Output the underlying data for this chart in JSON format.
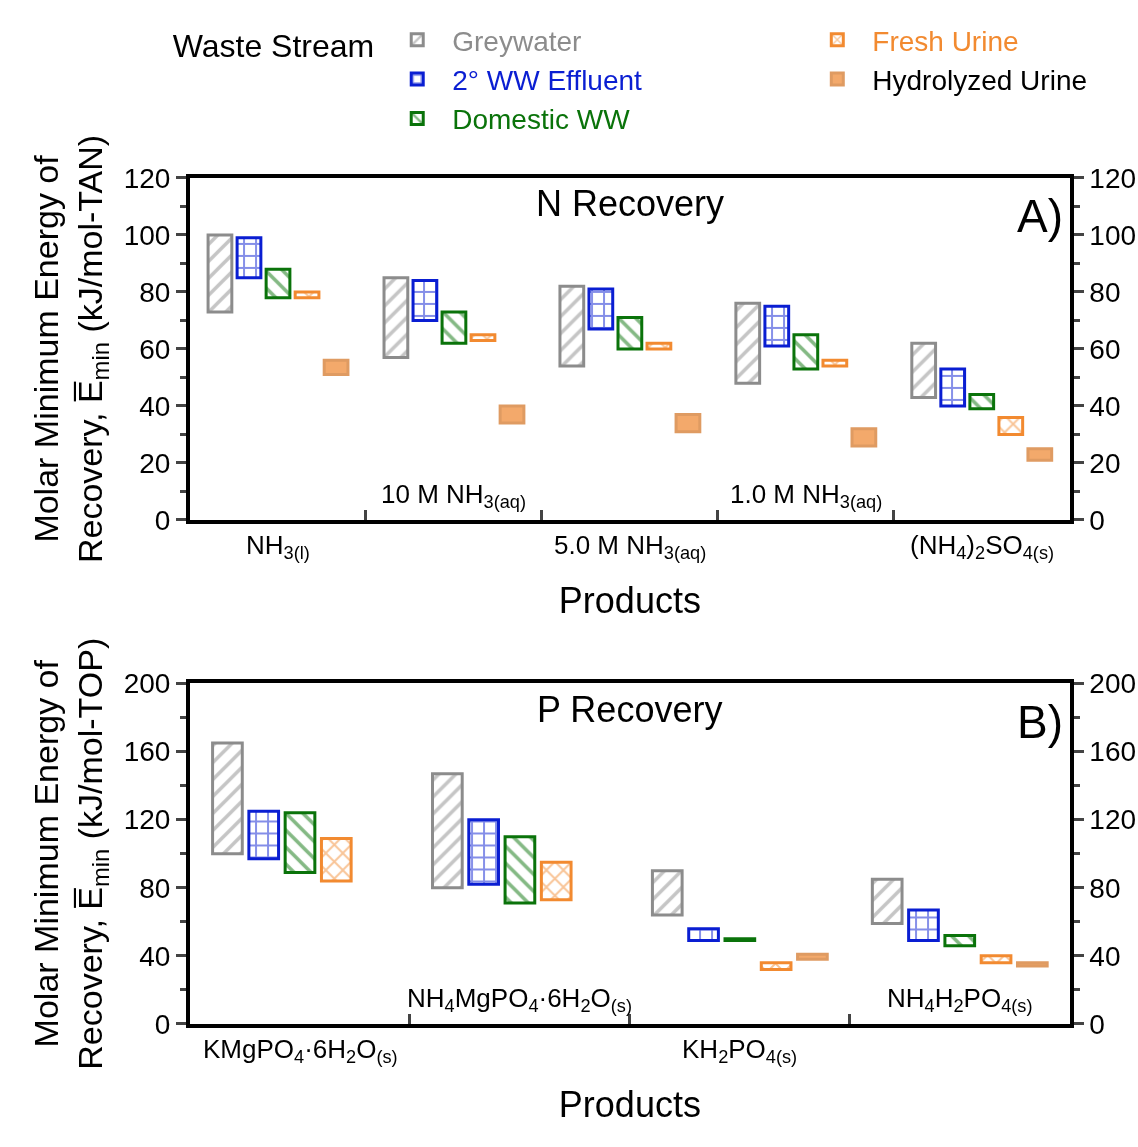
{
  "chart_data": [
    {
      "type": "bar",
      "title": "N Recovery",
      "xlabel": "Products",
      "ylabel": "Molar Minimum Energy of\nRecovery, E̅$_{min}$ (kJ/mol-TAN)",
      "legend_title": "Waste Stream",
      "legend": "top",
      "categories": [
        "NH$_{3(l)}$",
        "10 M NH$_{3(aq)}$",
        "5.0 M NH$_{3(aq)}$",
        "1.0 M NH$_{3(aq)}$",
        "(NH$_{4}$)$_{2}$SO$_{4(s)}$"
      ],
      "series": [
        {
          "name": "Greywater",
          "color": "#8c8c8c",
          "base": [
            73,
            57,
            54,
            48,
            43
          ],
          "values": [
            27,
            28,
            28,
            28,
            19
          ]
        },
        {
          "name": "2° WW Effluent",
          "color": "#0a1ed2",
          "base": [
            85,
            70,
            67,
            61,
            40
          ],
          "values": [
            14,
            14,
            14,
            14,
            13
          ]
        },
        {
          "name": "Domestic WW",
          "color": "#0a730a",
          "base": [
            78,
            62,
            60,
            53,
            39
          ],
          "values": [
            10,
            11,
            11,
            12,
            5
          ]
        },
        {
          "name": "Fresh Urine",
          "color": "#f28a30",
          "base": [
            78,
            63,
            60,
            54,
            30
          ],
          "values": [
            2,
            2,
            2,
            2,
            6
          ]
        },
        {
          "name": "Hydrolyzed Urine",
          "color": "#f3a96b",
          "base": [
            51,
            34,
            31,
            26,
            21
          ],
          "values": [
            5,
            6,
            6,
            6,
            4
          ]
        }
      ],
      "ylim": [
        0,
        120
      ],
      "yticks": [
        0,
        20,
        40,
        60,
        80,
        100,
        120
      ],
      "y2lim": [
        0,
        120
      ],
      "y2ticks": [
        0,
        20,
        40,
        60,
        80,
        100,
        120
      ],
      "annotations": [
        "A)"
      ]
    },
    {
      "type": "bar",
      "title": "P Recovery",
      "xlabel": "Products",
      "ylabel": "Molar Minimum Energy of\nRecovery, E̅$_{min}$ (kJ/mol-TOP)",
      "categories": [
        "KMgPO$_{4}$·6H$_{2}$O$_{(s)}$",
        "NH$_{4}$MgPO$_{4}$·6H$_{2}$O$_{(s)}$",
        "KH$_{2}$PO$_{4(s)}$",
        "NH$_{4}$H$_{2}$PO$_{4(s)}$"
      ],
      "series": [
        {
          "color": "#8c8c8c",
          "base": [
            100,
            80,
            64,
            59
          ],
          "values": [
            65,
            67,
            26,
            26
          ]
        },
        {
          "color": "#0a1ed2",
          "base": [
            97,
            82,
            49,
            49
          ],
          "values": [
            28,
            38,
            7,
            18
          ]
        },
        {
          "color": "#0a730a",
          "base": [
            89,
            71,
            49,
            46
          ],
          "values": [
            35,
            39,
            1,
            6
          ]
        },
        {
          "color": "#f28a30",
          "base": [
            84,
            73,
            32,
            36
          ],
          "values": [
            25,
            22,
            4,
            4
          ]
        },
        {
          "color": "#f3a96b",
          "base": [
            null,
            null,
            38,
            34
          ],
          "values": [
            null,
            null,
            3,
            2
          ]
        }
      ],
      "ylim": [
        0,
        200
      ],
      "yticks": [
        0,
        40,
        80,
        120,
        160,
        200
      ],
      "y2lim": [
        0,
        200
      ],
      "y2ticks": [
        0,
        40,
        80,
        120,
        160,
        200
      ],
      "annotations": [
        "B)"
      ]
    }
  ]
}
